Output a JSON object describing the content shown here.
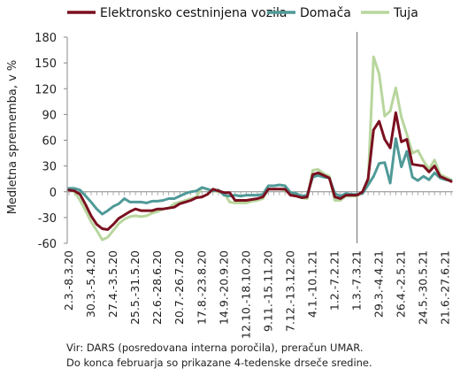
{
  "chart_data": {
    "type": "line",
    "ylabel": "Medletna sprememba, v %",
    "xlabel": "",
    "ylim": [
      -60,
      180
    ],
    "yticks": [
      -60,
      -30,
      0,
      30,
      60,
      90,
      120,
      150,
      180
    ],
    "grid": false,
    "legend_position": "top",
    "tick_labels": [
      "2.3.-8.3.20",
      "30.3.-5.4.20",
      "27.4.-3.5.20",
      "25.5.-31.5.20",
      "22.6.-28.6.20",
      "20.7.-26.7.20",
      "17.8.-23.8.20",
      "14.9.-20.9.20",
      "12.10.-18.10.20",
      "9.11.-15.11.20",
      "7.12.-13.12.20",
      "4.1.-10.1.21",
      "1.2.-7.2.21",
      "1.3.-7.3.21",
      "29.3.-4.4.21",
      "26.4.-2.5.21",
      "24.5.-30.5.21",
      "21.6.-27.6.21"
    ],
    "tick_positions": [
      0,
      4,
      8,
      12,
      16,
      20,
      24,
      28,
      32,
      36,
      40,
      44,
      48,
      52,
      56,
      60,
      64,
      68
    ],
    "vline_at": 52,
    "series": [
      {
        "name": "Elektronsko cestninjena vozila",
        "color": "#7a0f1f",
        "values": [
          2,
          1,
          -3,
          -15,
          -28,
          -38,
          -43,
          -44,
          -38,
          -31,
          -27,
          -23,
          -20,
          -22,
          -22,
          -22,
          -20,
          -20,
          -19,
          -18,
          -14,
          -12,
          -10,
          -7,
          -6,
          -3,
          3,
          1,
          -1,
          -1,
          -10,
          -10,
          -10,
          -9,
          -8,
          -6,
          3,
          3,
          3,
          3,
          -4,
          -5,
          -7,
          -6,
          20,
          22,
          19,
          16,
          -6,
          -8,
          -4,
          -4,
          -4,
          0,
          15,
          72,
          82,
          61,
          51,
          92,
          58,
          61,
          32,
          31,
          30,
          23,
          30,
          18,
          15,
          12
        ]
      },
      {
        "name": "Domača",
        "color": "#4f9a98",
        "values": [
          4,
          4,
          2,
          -5,
          -12,
          -20,
          -26,
          -22,
          -17,
          -14,
          -8,
          -12,
          -12,
          -12,
          -13,
          -11,
          -11,
          -10,
          -8,
          -8,
          -5,
          -2,
          0,
          1,
          5,
          3,
          1,
          2,
          -4,
          -5,
          -4,
          -5,
          -4,
          -4,
          -4,
          -3,
          7,
          7,
          8,
          7,
          -1,
          -2,
          -5,
          -4,
          17,
          19,
          17,
          16,
          -2,
          -5,
          -2,
          -3,
          -3,
          -2,
          8,
          18,
          33,
          34,
          10,
          62,
          29,
          47,
          17,
          13,
          18,
          14,
          22,
          16,
          14,
          13
        ]
      },
      {
        "name": "Tuja",
        "color": "#b8d69d",
        "values": [
          3,
          0,
          -10,
          -22,
          -35,
          -45,
          -56,
          -53,
          -45,
          -37,
          -32,
          -29,
          -28,
          -29,
          -28,
          -25,
          -23,
          -20,
          -19,
          -14,
          -12,
          -10,
          -8,
          -6,
          5,
          3,
          1,
          0,
          -1,
          -12,
          -13,
          -13,
          -13,
          -11,
          -10,
          -8,
          3,
          3,
          3,
          2,
          -3,
          -5,
          -7,
          -8,
          25,
          26,
          21,
          18,
          -10,
          -10,
          -5,
          -5,
          -5,
          0,
          10,
          157,
          137,
          88,
          94,
          121,
          87,
          67,
          45,
          48,
          36,
          26,
          37,
          20,
          17,
          14
        ]
      }
    ]
  },
  "source_note": {
    "line1": "Vir: DARS (posredovana interna poročila), preračun UMAR.",
    "line2": "Do konca februarja so prikazane 4-tedenske drseče sredine."
  }
}
